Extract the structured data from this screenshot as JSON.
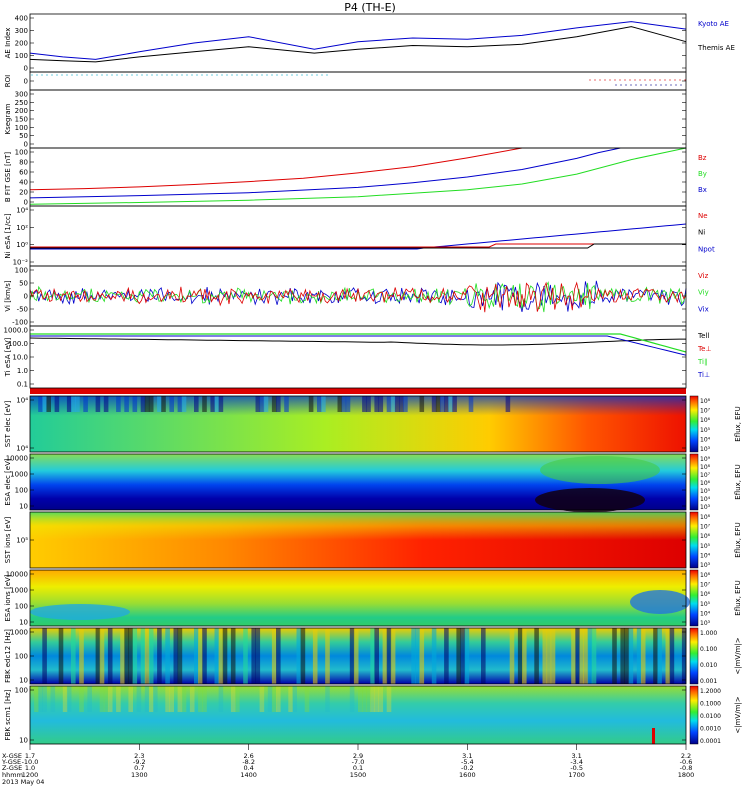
{
  "title": "P4 (TH-E)",
  "footer": {
    "date": "2013 May 04",
    "row_labels": [
      "X-GSE",
      "Y-GSE",
      "Z-GSE",
      "hhmm"
    ]
  },
  "ticks": [
    {
      "x": "1.7",
      "y": "-10.0",
      "z": "1.0",
      "hhmm": "1200"
    },
    {
      "x": "2.3",
      "y": "-9.2",
      "z": "0.7",
      "hhmm": "1300"
    },
    {
      "x": "2.6",
      "y": "-8.2",
      "z": "0.4",
      "hhmm": "1400"
    },
    {
      "x": "2.9",
      "y": "-7.0",
      "z": "0.1",
      "hhmm": "1500"
    },
    {
      "x": "3.1",
      "y": "-5.4",
      "z": "-0.2",
      "hhmm": "1600"
    },
    {
      "x": "3.1",
      "y": "-3.4",
      "z": "-0.5",
      "hhmm": "1700"
    },
    {
      "x": "2.2",
      "y": "-0.6",
      "z": "-0.8",
      "hhmm": "1800"
    }
  ],
  "colors": {
    "red": "#dd0000",
    "green": "#22dd22",
    "blue": "#0000cc",
    "black": "#000000"
  },
  "chart_data": {
    "type": "line",
    "x_range": [
      "12:00",
      "18:00"
    ],
    "panels": [
      {
        "id": "ae",
        "ylabel": "AE Index",
        "yticks": [
          "400",
          "300",
          "200",
          "100",
          "0"
        ],
        "ylim": [
          -40,
          420
        ],
        "series": [
          {
            "name": "Kyoto AE",
            "color": "#0000cc",
            "x": [
              0,
              0.3,
              0.6,
              1,
              1.5,
              2,
              2.6,
              3,
              3.5,
              4,
              4.5,
              5,
              5.5,
              6
            ],
            "y": [
              110,
              80,
              60,
              120,
              190,
              240,
              140,
              200,
              230,
              220,
              250,
              310,
              360,
              300
            ]
          },
          {
            "name": "Themis AE",
            "color": "#000000",
            "x": [
              0,
              0.3,
              0.6,
              1,
              1.5,
              2,
              2.6,
              3,
              3.5,
              4,
              4.5,
              5,
              5.5,
              6
            ],
            "y": [
              60,
              50,
              40,
              80,
              120,
              160,
              110,
              140,
              170,
              160,
              180,
              240,
              320,
              200
            ]
          }
        ]
      },
      {
        "id": "roi",
        "ylabel": "ROI",
        "yticks": [
          "0"
        ]
      },
      {
        "id": "kp",
        "ylabel": "Ksegram",
        "yticks": [
          "300",
          "250",
          "200",
          "150",
          "100",
          "50",
          "0"
        ]
      },
      {
        "id": "bfit",
        "ylabel": "B FIT GSE [nT]",
        "yticks": [
          "100",
          "80",
          "60",
          "40",
          "20",
          "0"
        ],
        "ylim": [
          0,
          100
        ],
        "series": [
          {
            "name": "Bz",
            "color": "#dd0000",
            "x": [
              0,
              0.5,
              1,
              1.5,
              2,
              2.5,
              3,
              3.5,
              4,
              4.5
            ],
            "y": [
              28,
              30,
              33,
              37,
              42,
              48,
              57,
              68,
              83,
              100
            ]
          },
          {
            "name": "By",
            "color": "#22dd22",
            "x": [
              0,
              1,
              2,
              3,
              3.5,
              4,
              4.5,
              5,
              5.5,
              6
            ],
            "y": [
              3,
              6,
              10,
              16,
              22,
              28,
              38,
              55,
              80,
              100
            ]
          },
          {
            "name": "Bx",
            "color": "#0000cc",
            "x": [
              0,
              1,
              2,
              3,
              3.5,
              4,
              4.5,
              5,
              5.2,
              5.4
            ],
            "y": [
              14,
              18,
              23,
              32,
              40,
              50,
              63,
              82,
              92,
              100
            ]
          }
        ]
      },
      {
        "id": "ni",
        "ylabel": "Ni eSA [1/cc]",
        "yticks": [
          "10⁴",
          "10²",
          "10⁰",
          "10⁻²"
        ],
        "series": [
          {
            "name": "Ne",
            "color": "#dd0000"
          },
          {
            "name": "Ni",
            "color": "#000000"
          },
          {
            "name": "Npot",
            "color": "#0000cc"
          }
        ]
      },
      {
        "id": "vi",
        "ylabel": "Vi [km/s]",
        "yticks": [
          "100",
          "50",
          "0",
          "-50",
          "-100"
        ],
        "series": [
          {
            "name": "Viz",
            "color": "#dd0000"
          },
          {
            "name": "Viy",
            "color": "#22dd22"
          },
          {
            "name": "Vix",
            "color": "#0000cc"
          }
        ]
      },
      {
        "id": "ti",
        "ylabel": "Ti eSA [eV]",
        "yticks": [
          "1000.0",
          "100.0",
          "10.0",
          "1.0",
          "0.1"
        ],
        "series": [
          {
            "name": "Tell",
            "color": "#000000"
          },
          {
            "name": "Te⊥",
            "color": "#dd0000"
          },
          {
            "name": "Ti∥",
            "color": "#22dd22"
          },
          {
            "name": "Ti⊥",
            "color": "#0000cc"
          }
        ]
      },
      {
        "id": "sst-e",
        "ylabel": "SST elec [eV]",
        "cbar": "Eflux, EFU",
        "yticks": [
          "10⁴",
          "10⁴"
        ],
        "cbar_ticks": [
          "10⁸",
          "10⁷",
          "10⁶",
          "10⁵",
          "10⁴",
          "10³"
        ]
      },
      {
        "id": "esa-e",
        "ylabel": "ESA elec [eV]",
        "cbar": "Eflux, EFU",
        "yticks": [
          "10000",
          "1000",
          "100",
          "10"
        ],
        "cbar_ticks": [
          "10⁹",
          "10⁸",
          "10⁷",
          "10⁶",
          "10⁵",
          "10⁴",
          "10³"
        ]
      },
      {
        "id": "sst-i",
        "ylabel": "SST ions [eV]",
        "cbar": "Eflux, EFU",
        "yticks": [
          "10⁵"
        ],
        "cbar_ticks": [
          "10⁸",
          "10⁷",
          "10⁶",
          "10⁵",
          "10⁴",
          "10³"
        ]
      },
      {
        "id": "esa-i",
        "ylabel": "ESA ions [eV]",
        "cbar": "Eflux, EFU",
        "yticks": [
          "10000",
          "1000",
          "100",
          "10"
        ],
        "cbar_ticks": [
          "10⁸",
          "10⁷",
          "10⁶",
          "10⁵",
          "10⁴",
          "10³"
        ]
      },
      {
        "id": "fbk-e",
        "ylabel": "FBK edc12 [Hz]",
        "cbar": "<|mV/m|>",
        "yticks": [
          "1000",
          "100",
          "10"
        ],
        "cbar_ticks": [
          "1.000",
          "0.100",
          "0.010",
          "0.001"
        ]
      },
      {
        "id": "fbk-s",
        "ylabel": "FBK scm1 [Hz]",
        "cbar": "<|mV/m|>",
        "yticks": [
          "100",
          "10"
        ],
        "cbar_ticks": [
          "1.2000",
          "0.1000",
          "0.0100",
          "0.0010",
          "0.0001"
        ]
      }
    ]
  }
}
